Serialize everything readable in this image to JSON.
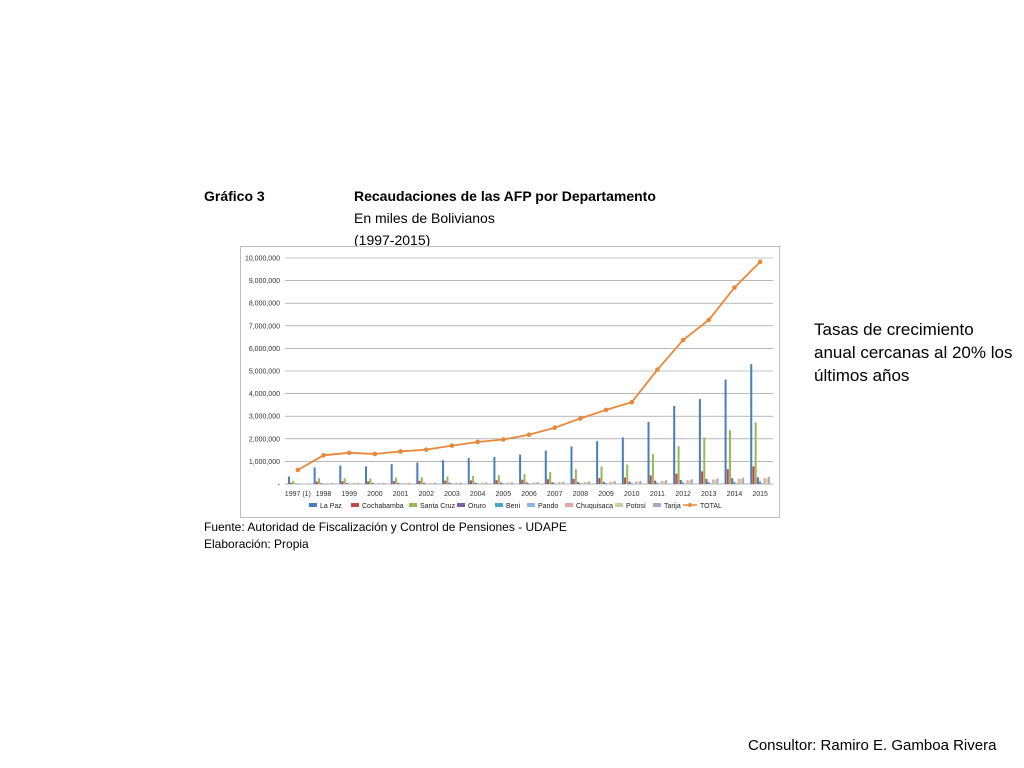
{
  "header": {
    "label": "Gráfico 3",
    "title": "Recaudaciones de las AFP por Departamento",
    "subtitle": "En miles de Bolivianos",
    "period": "(1997-2015)"
  },
  "chart_data": {
    "type": "bar",
    "title": "",
    "xlabel": "",
    "ylabel": "",
    "ylim": [
      0,
      10000000
    ],
    "yticks": [
      "-",
      "1,000,000",
      "2,000,000",
      "3,000,000",
      "4,000,000",
      "5,000,000",
      "6,000,000",
      "7,000,000",
      "8,000,000",
      "9,000,000",
      "10,000,000"
    ],
    "grid": true,
    "legend_position": "bottom",
    "categories": [
      "1997 (1)",
      "1998",
      "1999",
      "2000",
      "2001",
      "2002",
      "2003",
      "2004",
      "2005",
      "2006",
      "2007",
      "2008",
      "2009",
      "2010",
      "2011",
      "2012",
      "2013",
      "2014",
      "2015"
    ],
    "series": [
      {
        "name": "La Paz",
        "color": "#4a7ebb",
        "values": [
          330000,
          730000,
          820000,
          780000,
          880000,
          950000,
          1050000,
          1150000,
          1200000,
          1300000,
          1480000,
          1660000,
          1900000,
          2060000,
          2750000,
          3450000,
          3760000,
          4620000,
          5300000
        ]
      },
      {
        "name": "Cochabamba",
        "color": "#be4b48",
        "values": [
          60000,
          110000,
          120000,
          120000,
          130000,
          140000,
          150000,
          160000,
          170000,
          190000,
          210000,
          230000,
          260000,
          290000,
          380000,
          460000,
          560000,
          660000,
          780000
        ]
      },
      {
        "name": "Santa Cruz",
        "color": "#98b954",
        "values": [
          140000,
          250000,
          260000,
          250000,
          280000,
          300000,
          330000,
          360000,
          390000,
          440000,
          530000,
          660000,
          780000,
          860000,
          1320000,
          1680000,
          2060000,
          2380000,
          2730000
        ]
      },
      {
        "name": "Oruro",
        "color": "#7d60a0",
        "values": [
          20000,
          40000,
          45000,
          45000,
          50000,
          55000,
          60000,
          60000,
          65000,
          70000,
          80000,
          90000,
          100000,
          110000,
          150000,
          180000,
          220000,
          260000,
          300000
        ]
      },
      {
        "name": "Beni",
        "color": "#46aac5",
        "values": [
          10000,
          20000,
          20000,
          20000,
          25000,
          25000,
          25000,
          30000,
          30000,
          30000,
          35000,
          40000,
          45000,
          50000,
          60000,
          75000,
          90000,
          100000,
          120000
        ]
      },
      {
        "name": "Pando",
        "color": "#8eb4e3",
        "values": [
          5000,
          8000,
          8000,
          8000,
          10000,
          10000,
          10000,
          10000,
          12000,
          12000,
          15000,
          15000,
          18000,
          20000,
          25000,
          30000,
          35000,
          40000,
          45000
        ]
      },
      {
        "name": "Chuquisaca",
        "color": "#e6a5a4",
        "values": [
          20000,
          40000,
          45000,
          45000,
          50000,
          55000,
          60000,
          60000,
          65000,
          70000,
          80000,
          90000,
          100000,
          110000,
          140000,
          170000,
          200000,
          240000,
          270000
        ]
      },
      {
        "name": "Potosí",
        "color": "#c3d69b",
        "values": [
          15000,
          30000,
          35000,
          35000,
          40000,
          40000,
          45000,
          50000,
          55000,
          60000,
          70000,
          80000,
          90000,
          100000,
          130000,
          160000,
          190000,
          220000,
          250000
        ]
      },
      {
        "name": "Tarija",
        "color": "#b3a2c7",
        "values": [
          20000,
          45000,
          50000,
          50000,
          55000,
          60000,
          65000,
          70000,
          75000,
          85000,
          100000,
          110000,
          130000,
          140000,
          170000,
          210000,
          250000,
          280000,
          320000
        ]
      }
    ],
    "line_series": {
      "name": "TOTAL",
      "color": "#e8883a",
      "values": [
        620000,
        1270000,
        1380000,
        1330000,
        1440000,
        1520000,
        1700000,
        1860000,
        1970000,
        2180000,
        2490000,
        2900000,
        3280000,
        3620000,
        5060000,
        6370000,
        7260000,
        8690000,
        9830000
      ]
    }
  },
  "footer": {
    "source": "Fuente: Autoridad de Fiscalización y Control de Pensiones - UDAPE",
    "credit": "Elaboración: Propia"
  },
  "note": "Tasas de crecimiento anual cercanas al 20% los últimos años",
  "consultant": "Consultor: Ramiro E. Gamboa Rivera"
}
